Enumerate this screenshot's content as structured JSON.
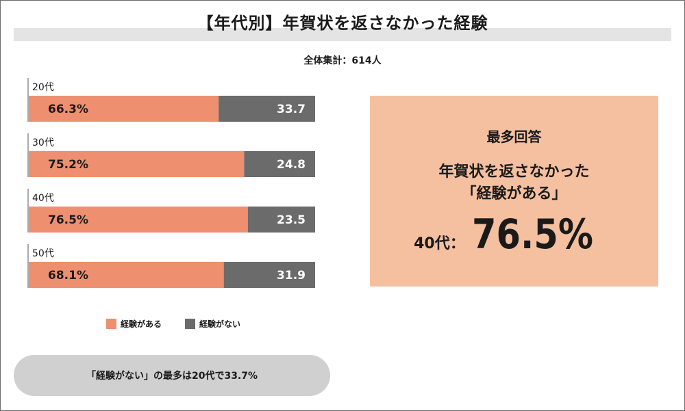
{
  "title": "【年代別】年賀状を返さなかった経験",
  "subtitle": "全体集計：614人",
  "colors": {
    "experienced": "#ee8f70",
    "not_experienced": "#6b6b6b",
    "highlight_bg": "#f5c0a0",
    "title_band": "#e4e4e4",
    "footnote_bg": "#d0d0d0"
  },
  "chart_data": {
    "type": "bar",
    "orientation": "horizontal-stacked",
    "categories": [
      "20代",
      "30代",
      "40代",
      "50代"
    ],
    "series": [
      {
        "name": "経験がある",
        "values": [
          66.3,
          75.2,
          76.5,
          68.1
        ],
        "labels": [
          "66.3%",
          "75.2%",
          "76.5%",
          "68.1%"
        ]
      },
      {
        "name": "経験がない",
        "values": [
          33.7,
          24.8,
          23.5,
          31.9
        ],
        "labels": [
          "33.7",
          "24.8",
          "23.5",
          "31.9"
        ]
      }
    ],
    "xlim": [
      0,
      100
    ],
    "grid": false,
    "legend": "bottom"
  },
  "legend": {
    "experienced": "経験がある",
    "not_experienced": "経験がない"
  },
  "highlight": {
    "heading": "最多回答",
    "line1": "年賀状を返さなかった",
    "line2": "「経験がある」",
    "stat_label": "40代：",
    "stat_value": "76.5%"
  },
  "footnote": "「経験がない」の最多は20代で33.7%"
}
